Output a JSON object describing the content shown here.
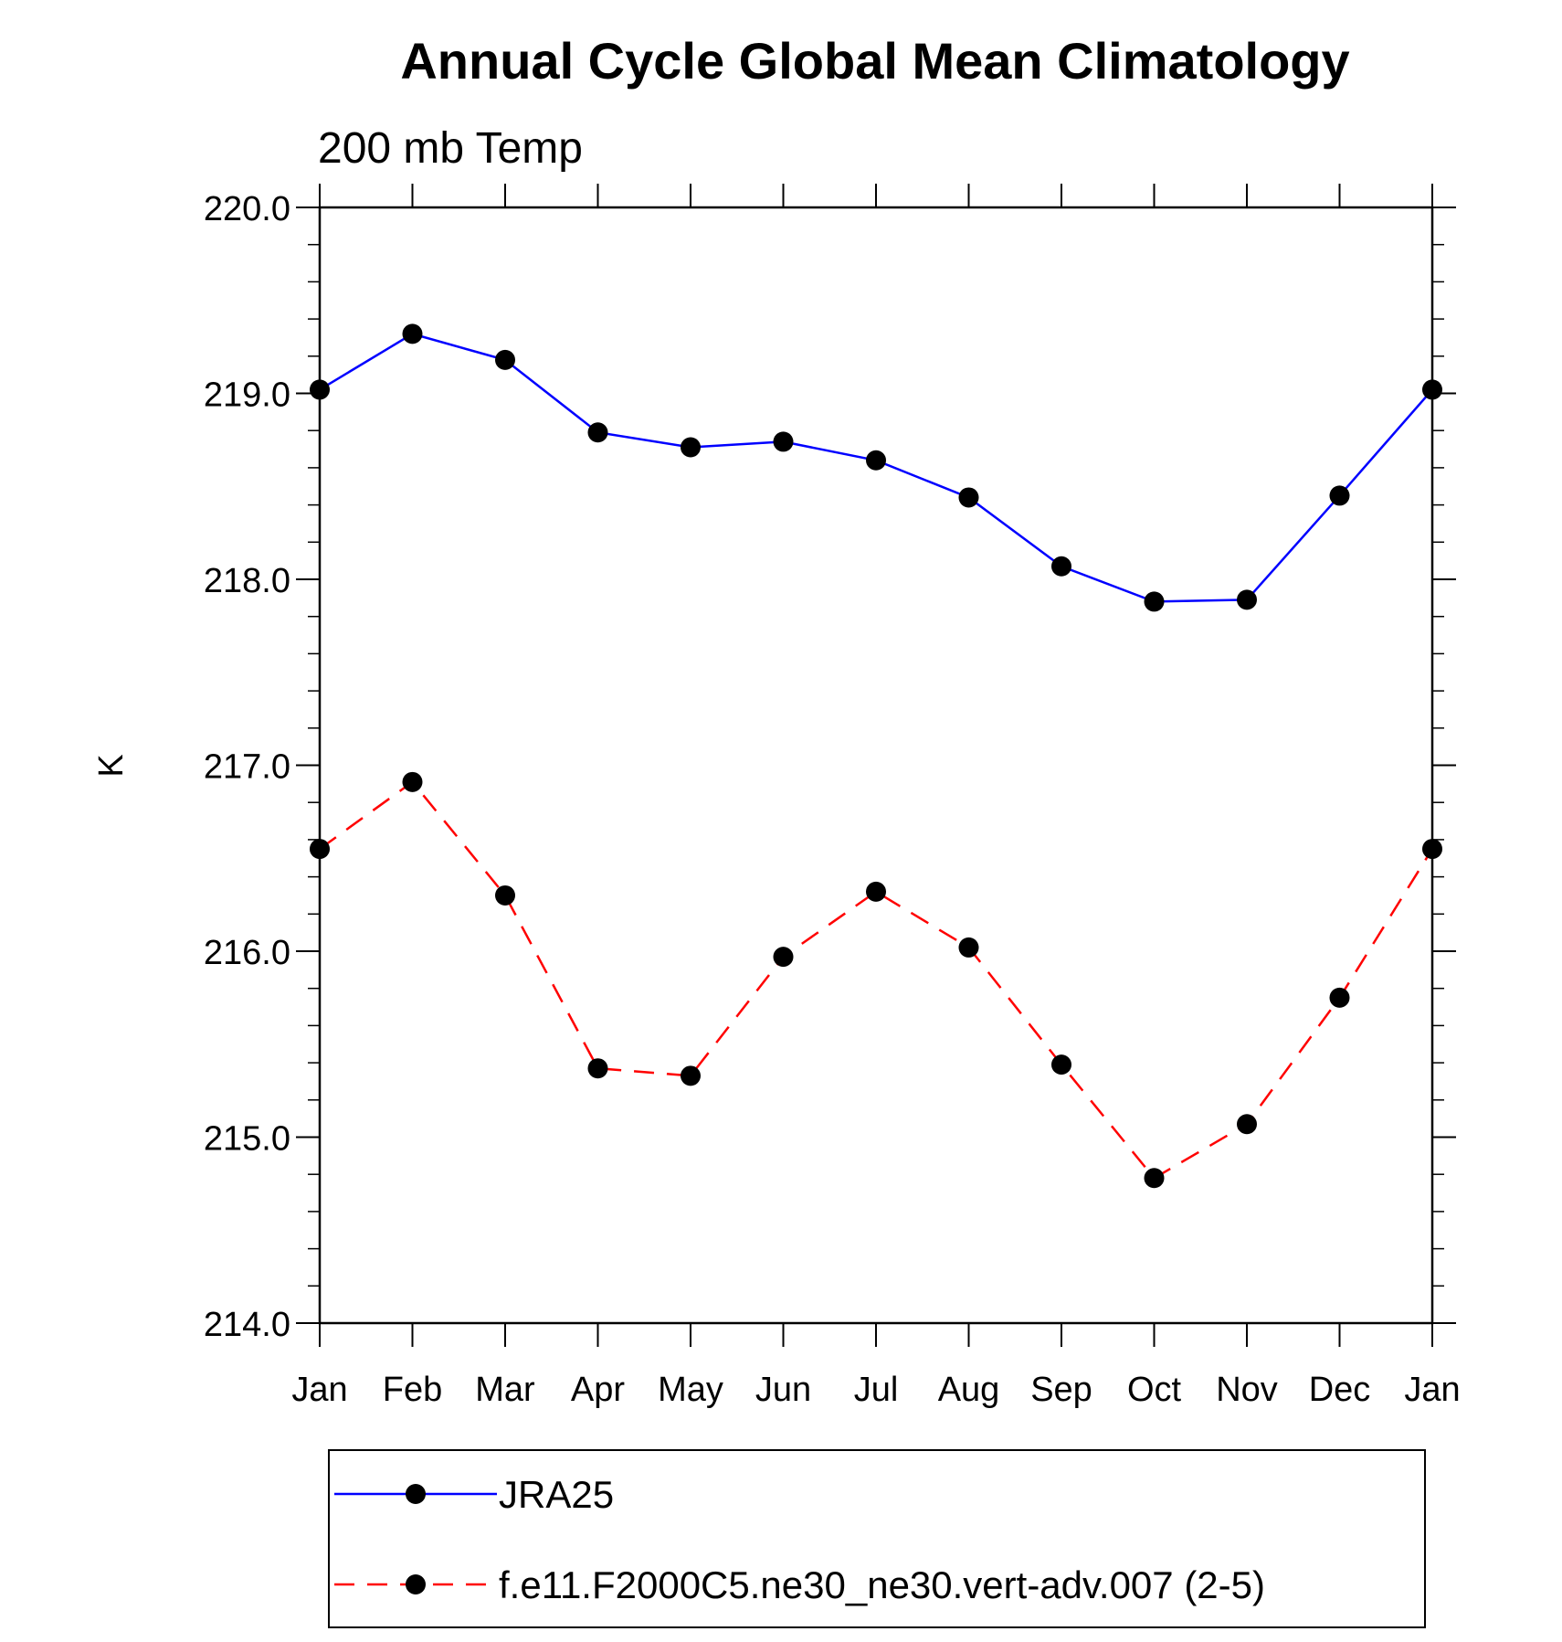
{
  "chart_data": {
    "type": "line",
    "title": "Annual Cycle Global Mean Climatology",
    "subtitle": "200 mb Temp",
    "xlabel": "",
    "ylabel": "K",
    "categories": [
      "Jan",
      "Feb",
      "Mar",
      "Apr",
      "May",
      "Jun",
      "Jul",
      "Aug",
      "Sep",
      "Oct",
      "Nov",
      "Dec",
      "Jan"
    ],
    "ylim": [
      214.0,
      220.0
    ],
    "yticks": [
      214.0,
      215.0,
      216.0,
      217.0,
      218.0,
      219.0,
      220.0
    ],
    "ytick_labels": [
      "214.0",
      "215.0",
      "216.0",
      "217.0",
      "218.0",
      "219.0",
      "220.0"
    ],
    "legend_position": "bottom",
    "series": [
      {
        "name": "JRA25",
        "color": "#0000ff",
        "line_style": "solid",
        "marker": "filled-circle",
        "values": [
          219.02,
          219.32,
          219.18,
          218.79,
          218.71,
          218.74,
          218.64,
          218.44,
          218.07,
          217.88,
          217.89,
          218.45,
          219.02
        ]
      },
      {
        "name": "f.e11.F2000C5.ne30_ne30.vert-adv.007 (2-5)",
        "color": "#ff0000",
        "line_style": "dashed",
        "marker": "filled-circle",
        "values": [
          216.55,
          216.91,
          216.3,
          215.37,
          215.33,
          215.97,
          216.32,
          216.02,
          215.39,
          214.78,
          215.07,
          215.75,
          216.55
        ]
      }
    ]
  }
}
